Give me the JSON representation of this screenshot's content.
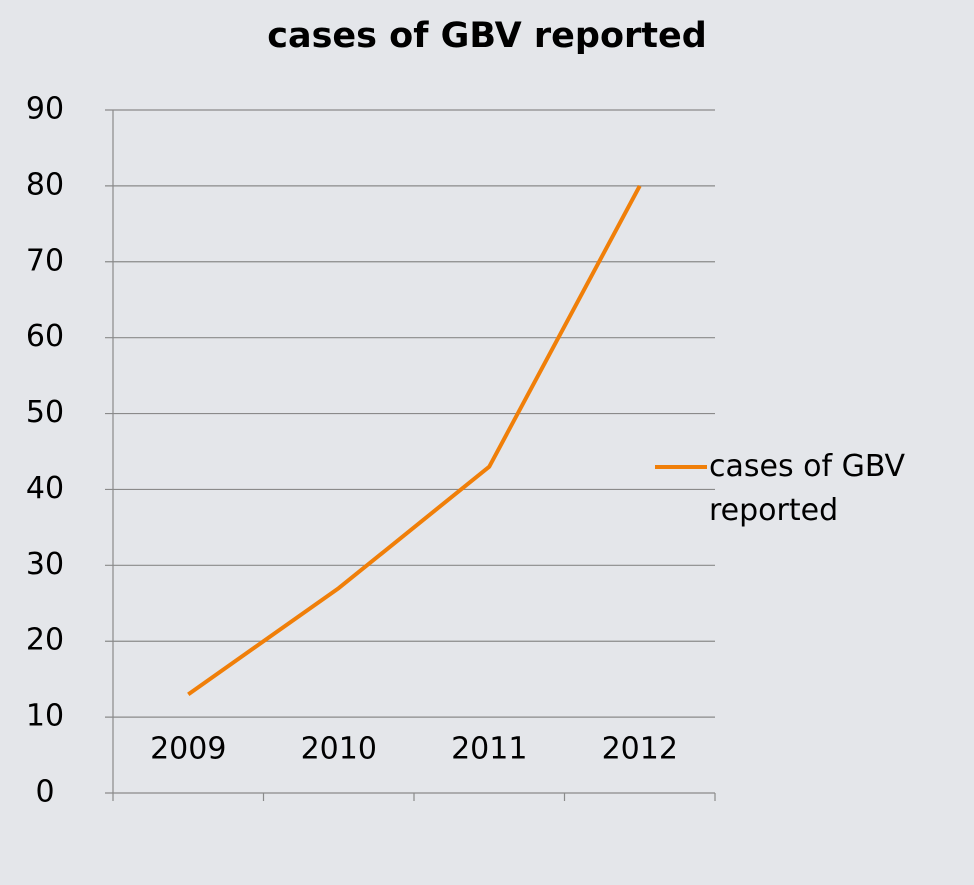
{
  "chart_data": {
    "type": "line",
    "title": "cases of GBV reported",
    "categories": [
      "2009",
      "2010",
      "2011",
      "2012"
    ],
    "series": [
      {
        "name": "cases of GBV reported",
        "color": "#f07f09",
        "values": [
          13,
          27,
          43,
          80
        ]
      }
    ],
    "ylim": [
      0,
      90
    ],
    "yticks": [
      0,
      10,
      20,
      30,
      40,
      50,
      60,
      70,
      80,
      90
    ],
    "grid": true,
    "legend": "right"
  }
}
